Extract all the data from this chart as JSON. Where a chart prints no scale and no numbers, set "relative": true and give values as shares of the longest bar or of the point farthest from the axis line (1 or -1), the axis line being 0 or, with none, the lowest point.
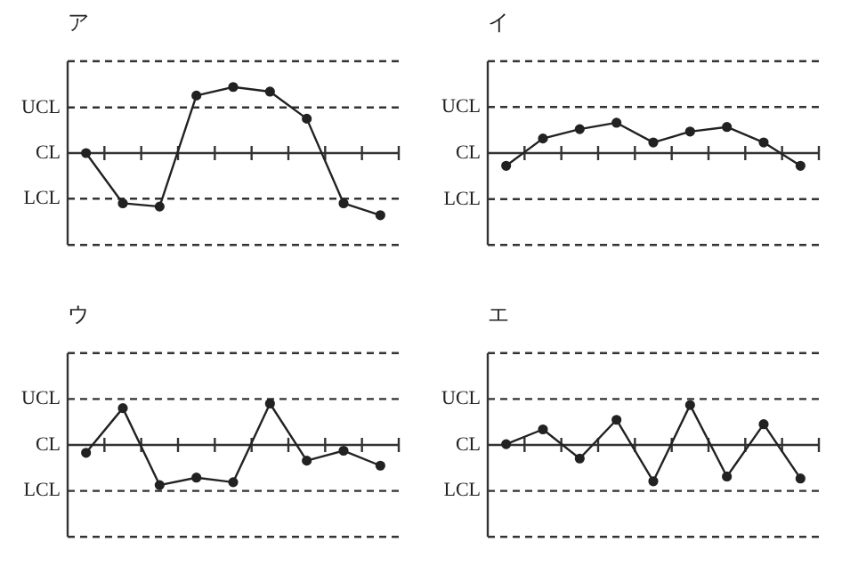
{
  "chart_data": [
    {
      "type": "line",
      "title": "ア",
      "relative": true,
      "categories": [
        null,
        null,
        null,
        null,
        null,
        null,
        null,
        null,
        null
      ],
      "values": [
        0,
        -0.76,
        -0.81,
        0.87,
        1,
        0.93,
        0.52,
        -0.76,
        -0.94
      ],
      "color": "#222222",
      "marker": "circle",
      "line_style": "solid",
      "ref_lines": [
        {
          "axis": "y",
          "value": 1.39,
          "label": null,
          "line_style": "dashed"
        },
        {
          "axis": "y",
          "value": 0.69,
          "label": "UCL",
          "line_style": "dashed"
        },
        {
          "axis": "y",
          "value": 0,
          "label": "CL",
          "line_style": "solid"
        },
        {
          "axis": "y",
          "value": -0.69,
          "label": "LCL",
          "line_style": "dashed"
        },
        {
          "axis": "y",
          "value": -1.39,
          "label": null,
          "line_style": "dashed"
        }
      ]
    },
    {
      "type": "line",
      "title": "イ",
      "relative": true,
      "categories": [
        null,
        null,
        null,
        null,
        null,
        null,
        null,
        null,
        null
      ],
      "values": [
        -0.42,
        0.48,
        0.79,
        1,
        0.35,
        0.71,
        0.86,
        0.35,
        -0.42
      ],
      "color": "#222222",
      "marker": "circle",
      "line_style": "solid",
      "ref_lines": [
        {
          "axis": "y",
          "value": 3.03,
          "label": null,
          "line_style": "dashed"
        },
        {
          "axis": "y",
          "value": 1.52,
          "label": "UCL",
          "line_style": "dashed"
        },
        {
          "axis": "y",
          "value": 0,
          "label": "CL",
          "line_style": "solid"
        },
        {
          "axis": "y",
          "value": -1.52,
          "label": "LCL",
          "line_style": "dashed"
        },
        {
          "axis": "y",
          "value": -3.03,
          "label": null,
          "line_style": "dashed"
        }
      ]
    },
    {
      "type": "line",
      "title": "ウ",
      "relative": true,
      "categories": [
        null,
        null,
        null,
        null,
        null,
        null,
        null,
        null,
        null
      ],
      "values": [
        -0.19,
        0.89,
        -0.97,
        -0.79,
        -0.9,
        1,
        -0.38,
        -0.14,
        -0.5
      ],
      "color": "#222222",
      "marker": "circle",
      "line_style": "solid",
      "ref_lines": [
        {
          "axis": "y",
          "value": 2.22,
          "label": null,
          "line_style": "dashed"
        },
        {
          "axis": "y",
          "value": 1.11,
          "label": "UCL",
          "line_style": "dashed"
        },
        {
          "axis": "y",
          "value": 0,
          "label": "CL",
          "line_style": "solid"
        },
        {
          "axis": "y",
          "value": -1.11,
          "label": "LCL",
          "line_style": "dashed"
        },
        {
          "axis": "y",
          "value": -2.22,
          "label": null,
          "line_style": "dashed"
        }
      ]
    },
    {
      "type": "line",
      "title": "エ",
      "relative": true,
      "categories": [
        null,
        null,
        null,
        null,
        null,
        null,
        null,
        null,
        null
      ],
      "values": [
        0.02,
        0.39,
        -0.34,
        0.63,
        -0.91,
        1,
        -0.79,
        0.52,
        -0.84
      ],
      "color": "#222222",
      "marker": "circle",
      "line_style": "solid",
      "ref_lines": [
        {
          "axis": "y",
          "value": 2.3,
          "label": null,
          "line_style": "dashed"
        },
        {
          "axis": "y",
          "value": 1.15,
          "label": "UCL",
          "line_style": "dashed"
        },
        {
          "axis": "y",
          "value": 0,
          "label": "CL",
          "line_style": "solid"
        },
        {
          "axis": "y",
          "value": -1.15,
          "label": "LCL",
          "line_style": "dashed"
        },
        {
          "axis": "y",
          "value": -2.3,
          "label": null,
          "line_style": "dashed"
        }
      ]
    }
  ]
}
